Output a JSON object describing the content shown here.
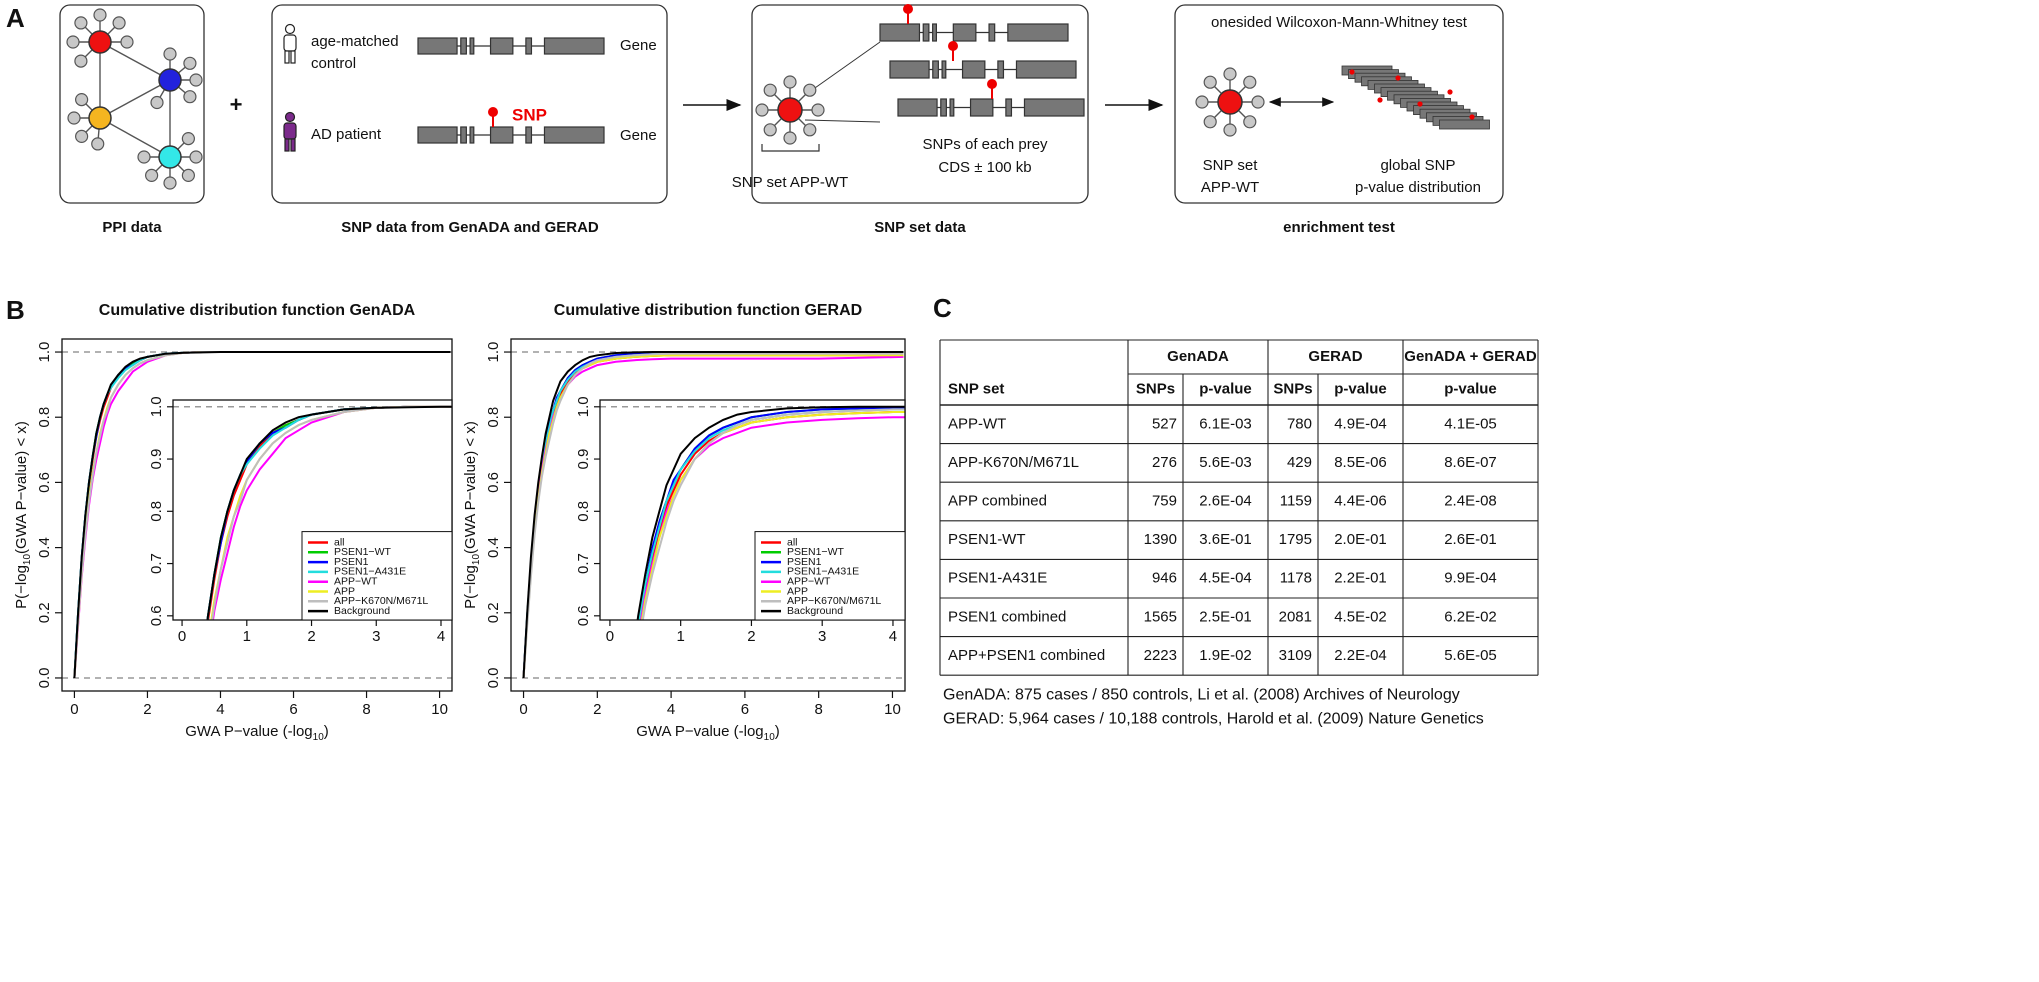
{
  "panel_a": {
    "letter": "A",
    "plus": "+",
    "ppi_data": {
      "label": "PPI data"
    },
    "snp_data": {
      "label": "SNP data from GenADA and GERAD",
      "control": [
        "age-matched",
        "control"
      ],
      "patient": "AD patient",
      "snp": "SNP",
      "gene": [
        "Gene",
        "Gene"
      ]
    },
    "snp_set_data": {
      "label": "SNP set data",
      "prey": [
        "SNPs of each prey",
        "CDS ± 100 kb"
      ],
      "set": "SNP set APP-WT"
    },
    "enrichment": {
      "label": "enrichment test",
      "test": "onesided Wilcoxon-Mann-Whitney test",
      "set": [
        "SNP set",
        "APP-WT"
      ],
      "global": [
        "global SNP",
        "p-value distribution"
      ]
    }
  },
  "panel_b": {
    "letter": "B"
  },
  "chart_data": [
    {
      "type": "line",
      "title": "Cumulative distribution function GenADA",
      "xlabel": [
        "GWA P−value (-log",
        "10",
        ")"
      ],
      "ylabel": [
        "P(−log",
        "10",
        "(GWA P−value) < x)"
      ],
      "x": [
        0,
        0.1,
        0.2,
        0.3,
        0.4,
        0.5,
        0.6,
        0.7,
        0.8,
        0.9,
        1,
        1.2,
        1.4,
        1.6,
        1.8,
        2,
        2.5,
        3,
        3.5,
        4,
        5,
        6,
        8,
        10.3
      ],
      "xlim": [
        -0.34,
        10.34
      ],
      "ylim": [
        -0.04,
        1.04
      ],
      "xticks": [
        0,
        2,
        4,
        6,
        8,
        10
      ],
      "yticks": [
        {
          "value": 0,
          "label": "0.0"
        },
        0.2,
        0.4,
        0.6,
        0.8,
        {
          "value": 1,
          "label": "1.0"
        }
      ],
      "hlines": [
        0,
        1
      ],
      "series": [
        {
          "name": "all",
          "color": "#ff0000",
          "values": [
            0,
            0.19,
            0.36,
            0.49,
            0.59,
            0.67,
            0.74,
            0.79,
            0.83,
            0.86,
            0.89,
            0.925,
            0.95,
            0.965,
            0.975,
            0.985,
            0.995,
            0.998,
            1,
            1,
            1,
            1,
            1,
            1
          ]
        },
        {
          "name": "PSEN1−WT",
          "color": "#00cd00",
          "values": [
            0,
            0.2,
            0.37,
            0.5,
            0.6,
            0.68,
            0.75,
            0.8,
            0.84,
            0.87,
            0.895,
            0.93,
            0.95,
            0.965,
            0.975,
            0.985,
            0.995,
            0.998,
            1,
            1,
            1,
            1,
            1,
            1
          ]
        },
        {
          "name": "PSEN1",
          "color": "#0000ff",
          "values": [
            0,
            0.2,
            0.37,
            0.5,
            0.6,
            0.68,
            0.74,
            0.8,
            0.84,
            0.87,
            0.895,
            0.93,
            0.95,
            0.96,
            0.975,
            0.985,
            0.995,
            0.998,
            1,
            1,
            1,
            1,
            1,
            1
          ]
        },
        {
          "name": "PSEN1−A431E",
          "color": "#22dddd",
          "values": [
            0,
            0.2,
            0.37,
            0.5,
            0.6,
            0.68,
            0.75,
            0.8,
            0.84,
            0.87,
            0.89,
            0.92,
            0.945,
            0.96,
            0.975,
            0.985,
            0.995,
            0.998,
            1,
            1,
            1,
            1,
            1,
            1
          ]
        },
        {
          "name": "APP−WT",
          "color": "#ff00ff",
          "values": [
            0,
            0.16,
            0.31,
            0.43,
            0.53,
            0.61,
            0.67,
            0.72,
            0.77,
            0.81,
            0.84,
            0.88,
            0.91,
            0.94,
            0.955,
            0.97,
            0.99,
            0.998,
            1,
            1,
            1,
            1,
            1,
            1
          ]
        },
        {
          "name": "APP",
          "color": "#eeee22",
          "values": [
            0,
            0.17,
            0.32,
            0.45,
            0.55,
            0.63,
            0.69,
            0.75,
            0.79,
            0.83,
            0.86,
            0.9,
            0.93,
            0.95,
            0.965,
            0.975,
            0.99,
            0.998,
            1,
            1,
            1,
            1,
            1,
            1
          ]
        },
        {
          "name": "APP−K670N/M671L",
          "color": "#bebebe",
          "values": [
            0,
            0.17,
            0.32,
            0.44,
            0.54,
            0.62,
            0.69,
            0.74,
            0.79,
            0.82,
            0.86,
            0.9,
            0.93,
            0.95,
            0.965,
            0.975,
            0.99,
            0.998,
            1,
            1,
            1,
            1,
            1,
            1
          ]
        },
        {
          "name": "Background",
          "color": "#000000",
          "values": [
            0,
            0.2,
            0.37,
            0.5,
            0.6,
            0.68,
            0.75,
            0.8,
            0.84,
            0.87,
            0.9,
            0.93,
            0.955,
            0.97,
            0.98,
            0.985,
            0.995,
            0.998,
            0.999,
            1,
            1,
            1,
            1,
            1
          ]
        }
      ],
      "inset": {
        "xlim": [
          -0.14,
          4.17
        ],
        "ylim": [
          0.592,
          1.013
        ],
        "xticks": [
          0,
          1,
          2,
          3,
          4
        ],
        "yticks": [
          0.6,
          0.7,
          0.8,
          0.9,
          {
            "value": 1,
            "label": "1.0"
          }
        ],
        "hlines": [
          1
        ],
        "legend": "bottom right"
      }
    },
    {
      "type": "line",
      "title": "Cumulative distribution function GERAD",
      "xlabel": [
        "GWA P−value (-log",
        "10",
        ")"
      ],
      "ylabel": [
        "P(−log",
        "10",
        "(GWA P−value) < x)"
      ],
      "x": [
        0,
        0.1,
        0.2,
        0.3,
        0.4,
        0.5,
        0.6,
        0.7,
        0.8,
        0.9,
        1,
        1.2,
        1.4,
        1.6,
        1.8,
        2,
        2.5,
        3,
        3.5,
        4,
        5,
        6,
        8,
        10.3
      ],
      "xlim": [
        -0.34,
        10.34
      ],
      "ylim": [
        -0.04,
        1.04
      ],
      "xticks": [
        0,
        2,
        4,
        6,
        8,
        10
      ],
      "yticks": [
        {
          "value": 0,
          "label": "0.0"
        },
        0.2,
        0.4,
        0.6,
        0.8,
        {
          "value": 1,
          "label": "1.0"
        }
      ],
      "hlines": [
        0,
        1
      ],
      "series": [
        {
          "name": "all",
          "color": "#ff0000",
          "values": [
            0,
            0.18,
            0.34,
            0.47,
            0.57,
            0.65,
            0.71,
            0.76,
            0.81,
            0.84,
            0.87,
            0.91,
            0.935,
            0.95,
            0.96,
            0.97,
            0.98,
            0.985,
            0.988,
            0.99,
            0.99,
            0.99,
            0.99,
            0.99
          ]
        },
        {
          "name": "PSEN1−WT",
          "color": "#00cd00",
          "values": [
            0,
            0.19,
            0.35,
            0.48,
            0.58,
            0.66,
            0.72,
            0.78,
            0.82,
            0.85,
            0.88,
            0.92,
            0.945,
            0.96,
            0.97,
            0.98,
            0.99,
            0.995,
            0.997,
            0.998,
            0.998,
            0.998,
            0.998,
            0.998
          ]
        },
        {
          "name": "PSEN1",
          "color": "#0000ff",
          "values": [
            0,
            0.19,
            0.35,
            0.48,
            0.58,
            0.66,
            0.73,
            0.78,
            0.82,
            0.86,
            0.88,
            0.92,
            0.945,
            0.96,
            0.97,
            0.98,
            0.99,
            0.995,
            0.997,
            0.998,
            0.998,
            0.998,
            0.998,
            0.998
          ]
        },
        {
          "name": "PSEN1−A431E",
          "color": "#22dddd",
          "values": [
            0,
            0.19,
            0.35,
            0.48,
            0.58,
            0.66,
            0.72,
            0.77,
            0.82,
            0.85,
            0.88,
            0.915,
            0.94,
            0.955,
            0.965,
            0.975,
            0.985,
            0.99,
            0.993,
            0.995,
            0.995,
            0.995,
            0.995,
            0.995
          ]
        },
        {
          "name": "APP−WT",
          "color": "#ff00ff",
          "values": [
            0,
            0.18,
            0.34,
            0.46,
            0.56,
            0.64,
            0.7,
            0.75,
            0.8,
            0.83,
            0.86,
            0.9,
            0.925,
            0.94,
            0.95,
            0.96,
            0.97,
            0.975,
            0.978,
            0.98,
            0.98,
            0.98,
            0.98,
            0.985
          ]
        },
        {
          "name": "APP",
          "color": "#eeee22",
          "values": [
            0,
            0.17,
            0.32,
            0.45,
            0.55,
            0.63,
            0.69,
            0.75,
            0.79,
            0.83,
            0.86,
            0.9,
            0.93,
            0.95,
            0.96,
            0.97,
            0.98,
            0.985,
            0.988,
            0.99,
            0.99,
            0.99,
            0.99,
            0.99
          ]
        },
        {
          "name": "APP−K670N/M671L",
          "color": "#bebebe",
          "values": [
            0,
            0.16,
            0.31,
            0.44,
            0.54,
            0.62,
            0.68,
            0.73,
            0.78,
            0.82,
            0.85,
            0.9,
            0.93,
            0.95,
            0.965,
            0.975,
            0.985,
            0.99,
            0.993,
            0.995,
            0.995,
            0.995,
            0.995,
            0.995
          ]
        },
        {
          "name": "Background",
          "color": "#000000",
          "values": [
            0,
            0.2,
            0.37,
            0.5,
            0.6,
            0.68,
            0.75,
            0.8,
            0.85,
            0.88,
            0.91,
            0.94,
            0.96,
            0.975,
            0.985,
            0.99,
            0.997,
            0.999,
            1,
            1,
            1,
            1,
            1,
            1
          ]
        }
      ],
      "inset": {
        "xlim": [
          -0.14,
          4.17
        ],
        "ylim": [
          0.592,
          1.013
        ],
        "xticks": [
          0,
          1,
          2,
          3,
          4
        ],
        "yticks": [
          0.6,
          0.7,
          0.8,
          0.9,
          {
            "value": 1,
            "label": "1.0"
          }
        ],
        "hlines": [
          1
        ],
        "legend": "bottom right"
      }
    }
  ],
  "table": {
    "letter": "C",
    "header_groups": [
      "GenADA",
      "GERAD",
      "GenADA + GERAD"
    ],
    "columns": [
      "SNP set",
      "SNPs",
      "p-value",
      "SNPs",
      "p-value",
      "p-value"
    ],
    "rows": [
      [
        "APP-WT",
        527,
        "6.1E-03",
        780,
        "4.9E-04",
        "4.1E-05"
      ],
      [
        "APP-K670N/M671L",
        276,
        "5.6E-03",
        429,
        "8.5E-06",
        "8.6E-07"
      ],
      [
        "APP combined",
        759,
        "2.6E-04",
        1159,
        "4.4E-06",
        "2.4E-08"
      ],
      [
        "PSEN1-WT",
        1390,
        "3.6E-01",
        1795,
        "2.0E-01",
        "2.6E-01"
      ],
      [
        "PSEN1-A431E",
        946,
        "4.5E-04",
        1178,
        "2.2E-01",
        "9.9E-04"
      ],
      [
        "PSEN1 combined",
        1565,
        "2.5E-01",
        2081,
        "4.5E-02",
        "6.2E-02"
      ],
      [
        "APP+PSEN1 combined",
        2223,
        "1.9E-02",
        3109,
        "2.2E-04",
        "5.6E-05"
      ]
    ],
    "notes": [
      "GenADA: 875 cases / 850 controls, Li et al. (2008) Archives of Neurology",
      "GERAD: 5,964 cases / 10,188 controls, Harold et al. (2009) Nature Genetics"
    ]
  }
}
